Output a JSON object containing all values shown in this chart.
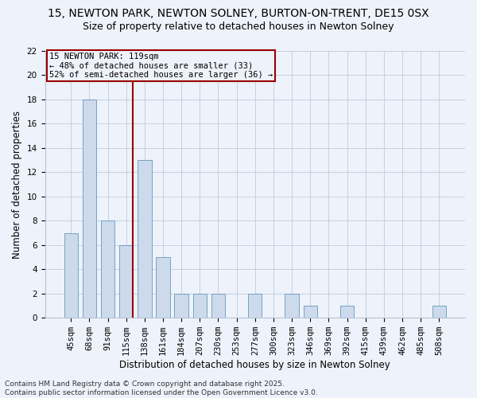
{
  "title1": "15, NEWTON PARK, NEWTON SOLNEY, BURTON-ON-TRENT, DE15 0SX",
  "title2": "Size of property relative to detached houses in Newton Solney",
  "xlabel": "Distribution of detached houses by size in Newton Solney",
  "ylabel": "Number of detached properties",
  "categories": [
    "45sqm",
    "68sqm",
    "91sqm",
    "115sqm",
    "138sqm",
    "161sqm",
    "184sqm",
    "207sqm",
    "230sqm",
    "253sqm",
    "277sqm",
    "300sqm",
    "323sqm",
    "346sqm",
    "369sqm",
    "392sqm",
    "415sqm",
    "439sqm",
    "462sqm",
    "485sqm",
    "508sqm"
  ],
  "values": [
    7,
    18,
    8,
    6,
    13,
    5,
    2,
    2,
    2,
    0,
    2,
    0,
    2,
    1,
    0,
    1,
    0,
    0,
    0,
    0,
    1
  ],
  "bar_color": "#ccdaec",
  "bar_edge_color": "#6699bb",
  "highlight_bar_index": 3,
  "highlight_color": "#990000",
  "ylim": [
    0,
    22
  ],
  "yticks": [
    0,
    2,
    4,
    6,
    8,
    10,
    12,
    14,
    16,
    18,
    20,
    22
  ],
  "annotation_text": "15 NEWTON PARK: 119sqm\n← 48% of detached houses are smaller (33)\n52% of semi-detached houses are larger (36) →",
  "bg_color": "#eef2fa",
  "footer": "Contains HM Land Registry data © Crown copyright and database right 2025.\nContains public sector information licensed under the Open Government Licence v3.0.",
  "title1_fontsize": 10,
  "title2_fontsize": 9,
  "xlabel_fontsize": 8.5,
  "ylabel_fontsize": 8.5,
  "tick_fontsize": 7.5,
  "footer_fontsize": 6.5
}
